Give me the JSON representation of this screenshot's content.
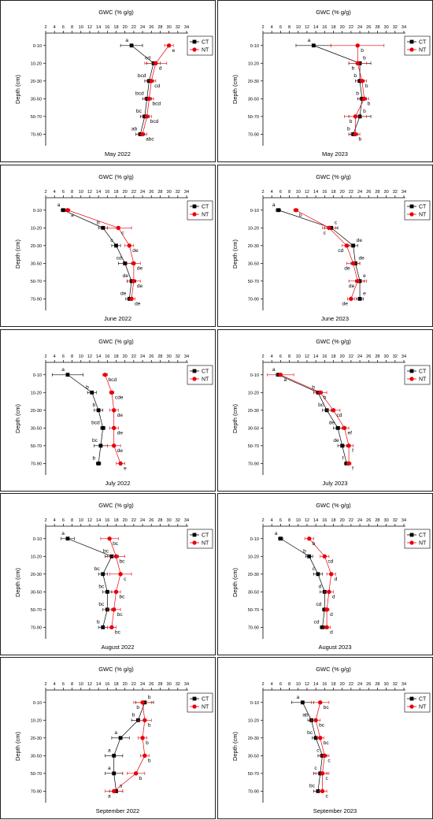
{
  "chart_data": [
    {
      "type": "line",
      "title": "May 2022",
      "xlabel": "GWC (% g/g)",
      "ylabel": "Depth (cm)",
      "xlim": [
        2,
        34
      ],
      "xticks": [
        2,
        4,
        6,
        8,
        10,
        12,
        14,
        16,
        18,
        20,
        22,
        24,
        26,
        28,
        30,
        32,
        34
      ],
      "categories": [
        "0-10",
        "10-20",
        "20-30",
        "30-50",
        "50-70",
        "70-90"
      ],
      "legend": "top-right",
      "series": [
        {
          "name": "CT",
          "color": "#000000",
          "values": [
            21.5,
            26.5,
            25.5,
            25.0,
            24.5,
            23.5
          ],
          "errors": [
            2.5,
            1.5,
            1.0,
            1.0,
            1.0,
            1.0
          ],
          "labels": [
            "a",
            "cd",
            "bcd",
            "bcd",
            "bc",
            "ab"
          ]
        },
        {
          "name": "NT",
          "color": "#e8000b",
          "values": [
            30.0,
            27.0,
            26.0,
            25.5,
            25.0,
            24.0
          ],
          "errors": [
            1.0,
            2.5,
            1.0,
            1.0,
            1.0,
            1.0
          ],
          "labels": [
            "e",
            "d",
            "cd",
            "bcd",
            "bcd",
            "abc"
          ]
        }
      ]
    },
    {
      "type": "line",
      "title": "May 2023",
      "xlabel": "GWC (% g/g)",
      "ylabel": "Depth (cm)",
      "xlim": [
        2,
        34
      ],
      "xticks": [
        2,
        4,
        6,
        8,
        10,
        12,
        14,
        16,
        18,
        20,
        22,
        24,
        26,
        28,
        30,
        32,
        34
      ],
      "categories": [
        "0-10",
        "10-20",
        "20-30",
        "30-50",
        "50-70",
        "70-90"
      ],
      "legend": "top-right",
      "series": [
        {
          "name": "CT",
          "color": "#000000",
          "values": [
            13.5,
            24.0,
            24.0,
            24.5,
            24.0,
            22.5
          ],
          "errors": [
            4.0,
            2.5,
            1.0,
            1.0,
            2.5,
            1.0
          ],
          "labels": [
            "a",
            "b",
            "b",
            "b",
            "b",
            "b"
          ]
        },
        {
          "name": "NT",
          "color": "#e8000b",
          "values": [
            23.5,
            23.5,
            24.5,
            25.0,
            23.0,
            23.0
          ],
          "errors": [
            6.0,
            2.0,
            1.0,
            1.0,
            2.5,
            1.0
          ],
          "labels": [
            "b",
            "b",
            "b",
            "b",
            "b",
            "b"
          ]
        }
      ]
    },
    {
      "type": "line",
      "title": "June 2022",
      "xlabel": "GWC (% g/g)",
      "ylabel": "Depth (cm)",
      "xlim": [
        2,
        34
      ],
      "xticks": [
        2,
        4,
        6,
        8,
        10,
        12,
        14,
        16,
        18,
        20,
        22,
        24,
        26,
        28,
        30,
        32,
        34
      ],
      "categories": [
        "0-10",
        "10-20",
        "20-30",
        "30-50",
        "50-70",
        "70-90"
      ],
      "legend": "top-right",
      "series": [
        {
          "name": "CT",
          "color": "#000000",
          "values": [
            6.0,
            15.0,
            18.0,
            20.0,
            21.5,
            21.0
          ],
          "errors": [
            0.5,
            1.0,
            1.0,
            1.5,
            1.0,
            0.8
          ],
          "labels": [
            "a",
            "b",
            "c",
            "cd",
            "de",
            "de"
          ]
        },
        {
          "name": "NT",
          "color": "#e8000b",
          "values": [
            7.0,
            18.5,
            21.0,
            22.0,
            22.0,
            21.5
          ],
          "errors": [
            0.5,
            3.0,
            1.0,
            1.5,
            1.5,
            0.8
          ],
          "labels": [
            "a",
            "c",
            "de",
            "de",
            "de",
            "de"
          ]
        }
      ]
    },
    {
      "type": "line",
      "title": "June 2023",
      "xlabel": "GWC (% g/g)",
      "ylabel": "Depth (cm)",
      "xlim": [
        2,
        34
      ],
      "xticks": [
        2,
        4,
        6,
        8,
        10,
        12,
        14,
        16,
        18,
        20,
        22,
        24,
        26,
        28,
        30,
        32,
        34
      ],
      "categories": [
        "0-10",
        "10-20",
        "20-30",
        "30-50",
        "50-70",
        "70-90"
      ],
      "legend": "top-right",
      "series": [
        {
          "name": "CT",
          "color": "#000000",
          "values": [
            5.5,
            17.5,
            22.5,
            23.0,
            24.0,
            24.0
          ],
          "errors": [
            0.5,
            1.5,
            1.0,
            1.0,
            1.0,
            0.8
          ],
          "labels": [
            "a",
            "c",
            "de",
            "de",
            "e",
            "e"
          ]
        },
        {
          "name": "NT",
          "color": "#e8000b",
          "values": [
            9.5,
            17.0,
            21.0,
            22.5,
            23.5,
            22.0
          ],
          "errors": [
            0.5,
            1.5,
            1.0,
            1.5,
            2.0,
            0.8
          ],
          "labels": [
            "b",
            "c",
            "cd",
            "de",
            "de",
            "de"
          ]
        }
      ]
    },
    {
      "type": "line",
      "title": "July 2022",
      "xlabel": "GWC (% g/g)",
      "ylabel": "Depth (cm)",
      "xlim": [
        2,
        34
      ],
      "xticks": [
        2,
        4,
        6,
        8,
        10,
        12,
        14,
        16,
        18,
        20,
        22,
        24,
        26,
        28,
        30,
        32,
        34
      ],
      "categories": [
        "0-10",
        "10-20",
        "20-30",
        "30-50",
        "50-70",
        "70-90"
      ],
      "legend": "top-right",
      "series": [
        {
          "name": "CT",
          "color": "#000000",
          "values": [
            7.0,
            12.5,
            14.0,
            15.0,
            14.5,
            14.0
          ],
          "errors": [
            3.5,
            1.0,
            1.0,
            0.5,
            1.5,
            0.5
          ],
          "labels": [
            "a",
            "b",
            "b",
            "bcd",
            "bc",
            "b"
          ]
        },
        {
          "name": "NT",
          "color": "#e8000b",
          "values": [
            15.5,
            17.0,
            17.5,
            17.5,
            17.5,
            19.0
          ],
          "errors": [
            0.5,
            0.5,
            1.0,
            1.0,
            1.5,
            1.0
          ],
          "labels": [
            "bcd",
            "cde",
            "de",
            "de",
            "de",
            "e"
          ]
        }
      ]
    },
    {
      "type": "line",
      "title": "July 2023",
      "xlabel": "GWC (% g/g)",
      "ylabel": "Depth (cm)",
      "xlim": [
        2,
        34
      ],
      "xticks": [
        2,
        4,
        6,
        8,
        10,
        12,
        14,
        16,
        18,
        20,
        22,
        24,
        26,
        28,
        30,
        32,
        34
      ],
      "categories": [
        "0-10",
        "10-20",
        "20-30",
        "30-50",
        "50-70",
        "70-90"
      ],
      "legend": "top-right",
      "series": [
        {
          "name": "CT",
          "color": "#000000",
          "values": [
            5.5,
            14.5,
            16.5,
            19.0,
            20.0,
            21.0
          ],
          "errors": [
            0.5,
            1.0,
            1.0,
            1.0,
            1.0,
            0.5
          ],
          "labels": [
            "a",
            "b",
            "bc",
            "de",
            "de",
            "f"
          ]
        },
        {
          "name": "NT",
          "color": "#e8000b",
          "values": [
            6.0,
            15.0,
            18.0,
            20.5,
            21.5,
            21.5
          ],
          "errors": [
            3.0,
            1.5,
            1.5,
            1.0,
            1.0,
            0.5
          ],
          "labels": [
            "a",
            "b",
            "cd",
            "ef",
            "f",
            "f"
          ]
        }
      ]
    },
    {
      "type": "line",
      "title": "August 2022",
      "xlabel": "GWC (% g/g)",
      "ylabel": "Depth (cm)",
      "xlim": [
        2,
        34
      ],
      "xticks": [
        2,
        4,
        6,
        8,
        10,
        12,
        14,
        16,
        18,
        20,
        22,
        24,
        26,
        28,
        30,
        32,
        34
      ],
      "categories": [
        "0-10",
        "10-20",
        "20-30",
        "30-50",
        "50-70",
        "70-90"
      ],
      "legend": "top-right",
      "series": [
        {
          "name": "CT",
          "color": "#000000",
          "values": [
            7.0,
            17.0,
            15.0,
            16.0,
            16.0,
            15.0
          ],
          "errors": [
            1.5,
            1.5,
            1.0,
            1.0,
            1.0,
            1.0
          ],
          "labels": [
            "a",
            "bc",
            "bc",
            "bc",
            "bc",
            "b"
          ]
        },
        {
          "name": "NT",
          "color": "#e8000b",
          "values": [
            16.5,
            18.0,
            19.0,
            18.0,
            17.5,
            17.0
          ],
          "errors": [
            2.0,
            2.0,
            2.5,
            1.0,
            1.5,
            1.0
          ],
          "labels": [
            "bc",
            "bc",
            "c",
            "bc",
            "bc",
            "bc"
          ]
        }
      ]
    },
    {
      "type": "line",
      "title": "August 2023",
      "xlabel": "GWC (% g/g)",
      "ylabel": "Depth (cm)",
      "xlim": [
        2,
        34
      ],
      "xticks": [
        2,
        4,
        6,
        8,
        10,
        12,
        14,
        16,
        18,
        20,
        22,
        24,
        26,
        28,
        30,
        32,
        34
      ],
      "categories": [
        "0-10",
        "10-20",
        "20-30",
        "30-50",
        "50-70",
        "70-90"
      ],
      "legend": "top-right",
      "series": [
        {
          "name": "CT",
          "color": "#000000",
          "values": [
            6.0,
            12.5,
            14.5,
            16.0,
            16.0,
            15.5
          ],
          "errors": [
            0.5,
            0.8,
            1.0,
            1.0,
            0.5,
            0.5
          ],
          "labels": [
            "a",
            "b",
            "c",
            "d",
            "cd",
            "cd"
          ]
        },
        {
          "name": "NT",
          "color": "#e8000b",
          "values": [
            12.5,
            16.0,
            17.5,
            17.0,
            16.5,
            16.5
          ],
          "errors": [
            1.0,
            1.0,
            1.0,
            1.0,
            0.5,
            0.8
          ],
          "labels": [
            "b",
            "cd",
            "d",
            "d",
            "d",
            "d"
          ]
        }
      ]
    },
    {
      "type": "line",
      "title": "September 2022",
      "xlabel": "GWC (% g/g)",
      "ylabel": "Depth (cm)",
      "xlim": [
        2,
        34
      ],
      "xticks": [
        2,
        4,
        6,
        8,
        10,
        12,
        14,
        16,
        18,
        20,
        22,
        24,
        26,
        28,
        30,
        32,
        34
      ],
      "categories": [
        "0-10",
        "10-20",
        "20-30",
        "30-50",
        "50-70",
        "70-90"
      ],
      "legend": "top-right",
      "series": [
        {
          "name": "CT",
          "color": "#000000",
          "values": [
            24.5,
            23.0,
            19.0,
            17.5,
            17.5,
            18.0
          ],
          "errors": [
            2.0,
            1.5,
            2.0,
            2.0,
            2.0,
            1.5
          ],
          "labels": [
            "b",
            "b",
            "a",
            "a",
            "a",
            "a"
          ]
        },
        {
          "name": "NT",
          "color": "#e8000b",
          "values": [
            24.0,
            24.5,
            24.0,
            24.5,
            22.5,
            17.5
          ],
          "errors": [
            2.0,
            1.5,
            1.0,
            1.0,
            2.0,
            2.0
          ],
          "labels": [
            "b",
            "b",
            "b",
            "b",
            "b",
            "a"
          ]
        }
      ]
    },
    {
      "type": "line",
      "title": "September 2023",
      "xlabel": "GWC (% g/g)",
      "ylabel": "Depth (cm)",
      "xlim": [
        2,
        34
      ],
      "xticks": [
        2,
        4,
        6,
        8,
        10,
        12,
        14,
        16,
        18,
        20,
        22,
        24,
        26,
        28,
        30,
        32,
        34
      ],
      "categories": [
        "0-10",
        "10-20",
        "20-30",
        "30-50",
        "50-70",
        "70-90"
      ],
      "legend": "top-right",
      "series": [
        {
          "name": "CT",
          "color": "#000000",
          "values": [
            11.0,
            13.0,
            14.0,
            15.5,
            15.0,
            14.5
          ],
          "errors": [
            2.5,
            0.8,
            0.8,
            1.0,
            1.5,
            1.0
          ],
          "labels": [
            "a",
            "ab",
            "bc",
            "c",
            "c",
            "bc"
          ]
        },
        {
          "name": "NT",
          "color": "#e8000b",
          "values": [
            15.0,
            14.0,
            15.0,
            16.0,
            15.5,
            15.5
          ],
          "errors": [
            2.0,
            1.0,
            0.8,
            1.0,
            1.5,
            1.0
          ],
          "labels": [
            "bc",
            "bc",
            "bc",
            "c",
            "c",
            "c"
          ]
        }
      ]
    }
  ]
}
